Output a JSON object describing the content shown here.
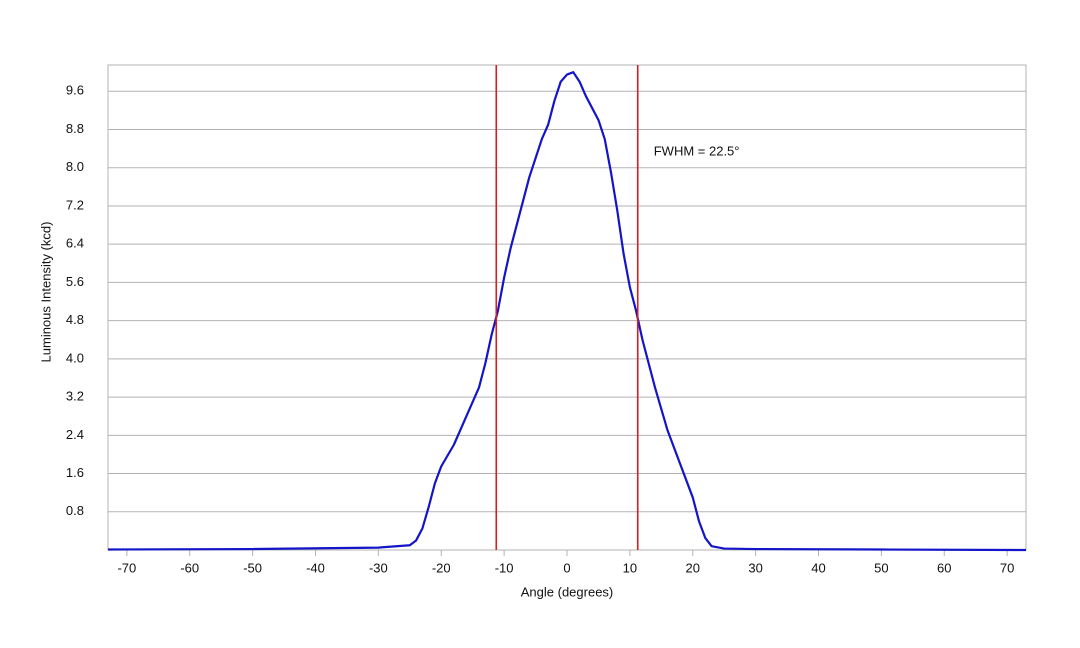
{
  "chart_data": {
    "type": "line",
    "x_label": "Angle (degrees)",
    "y_label": "Luminous Intensity (kcd)",
    "annotation": "FWHM = 22.5°",
    "x": [
      -73,
      -50,
      -30,
      -25,
      -24,
      -23,
      -22,
      -21,
      -20,
      -18,
      -16,
      -14,
      -13,
      -12,
      -11,
      -10,
      -9,
      -8,
      -6,
      -4,
      -3,
      -2,
      -1,
      0,
      1,
      2,
      3,
      5,
      6,
      7,
      8,
      9,
      10,
      11,
      12,
      14,
      16,
      18,
      20,
      21,
      22,
      23,
      25,
      30,
      50,
      73
    ],
    "values": [
      0.01,
      0.02,
      0.05,
      0.1,
      0.2,
      0.45,
      0.9,
      1.4,
      1.75,
      2.2,
      2.8,
      3.4,
      3.9,
      4.5,
      5.0,
      5.7,
      6.3,
      6.8,
      7.8,
      8.6,
      8.9,
      9.4,
      9.8,
      9.95,
      10.0,
      9.8,
      9.5,
      9.0,
      8.6,
      7.9,
      7.1,
      6.2,
      5.5,
      5.0,
      4.4,
      3.4,
      2.5,
      1.8,
      1.1,
      0.6,
      0.25,
      0.08,
      0.03,
      0.02,
      0.01,
      0.0
    ],
    "color": "#1414c8",
    "vlines": [
      -11.25,
      11.25
    ],
    "vline_color": "#d22020",
    "xlim": [
      -73,
      73
    ],
    "ylim": [
      0,
      10.15
    ],
    "xticks": [
      -70,
      -60,
      -50,
      -40,
      -30,
      -20,
      -10,
      0,
      10,
      20,
      30,
      40,
      50,
      60,
      70
    ],
    "yticks": [
      0.8,
      1.6,
      2.4,
      3.2,
      {
        "value": 4,
        "label": "4.0"
      },
      4.8,
      5.6,
      6.4,
      7.2,
      {
        "value": 8,
        "label": "8.0"
      },
      8.8,
      9.6
    ],
    "grid": true
  }
}
